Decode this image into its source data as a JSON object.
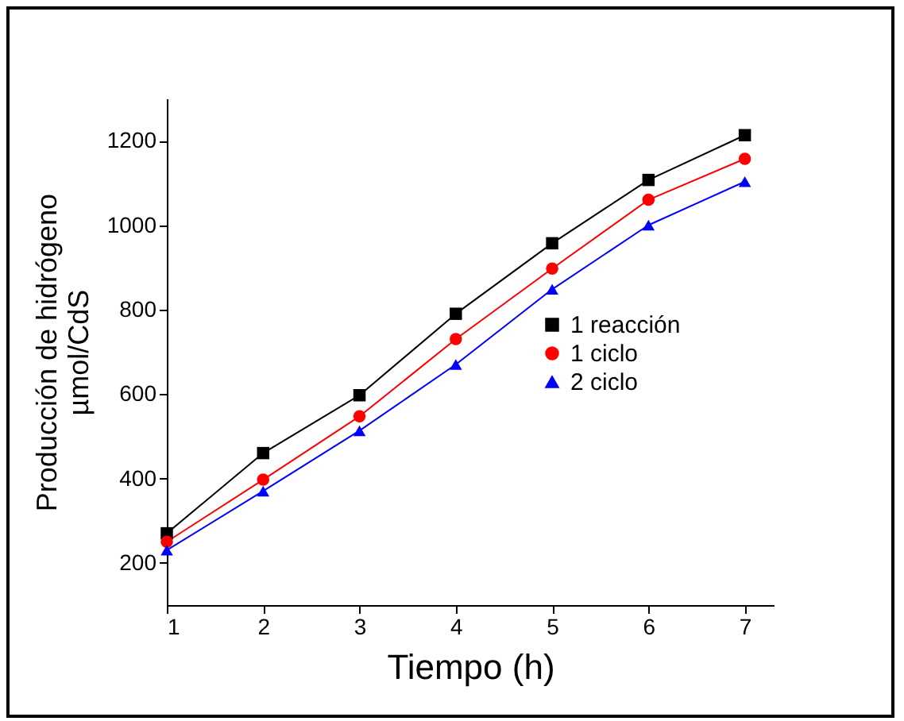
{
  "chart_data": {
    "type": "line",
    "xlabel": "Tiempo (h)",
    "ylabel": "Producción de hidrógeno\nµmol/CdS",
    "x": [
      1,
      2,
      3,
      4,
      5,
      6,
      7
    ],
    "xlim": [
      1,
      7.3
    ],
    "xticks": [
      1,
      2,
      3,
      4,
      5,
      6,
      7
    ],
    "ylim": [
      100,
      1300
    ],
    "yticks": [
      200,
      400,
      600,
      800,
      1000,
      1200
    ],
    "grid": false,
    "legend": "right",
    "line_style": "solid",
    "series": [
      {
        "name": "1 reacción",
        "color": "#000000",
        "marker": "square",
        "values": [
          270,
          460,
          597,
          790,
          957,
          1107,
          1213
        ]
      },
      {
        "name": "1 ciclo",
        "color": "#ff0000",
        "marker": "circle",
        "values": [
          250,
          397,
          547,
          730,
          897,
          1060,
          1157
        ]
      },
      {
        "name": "2 ciclo",
        "color": "#0000ff",
        "marker": "triangle",
        "values": [
          230,
          370,
          513,
          670,
          848,
          1000,
          1103
        ]
      }
    ]
  }
}
